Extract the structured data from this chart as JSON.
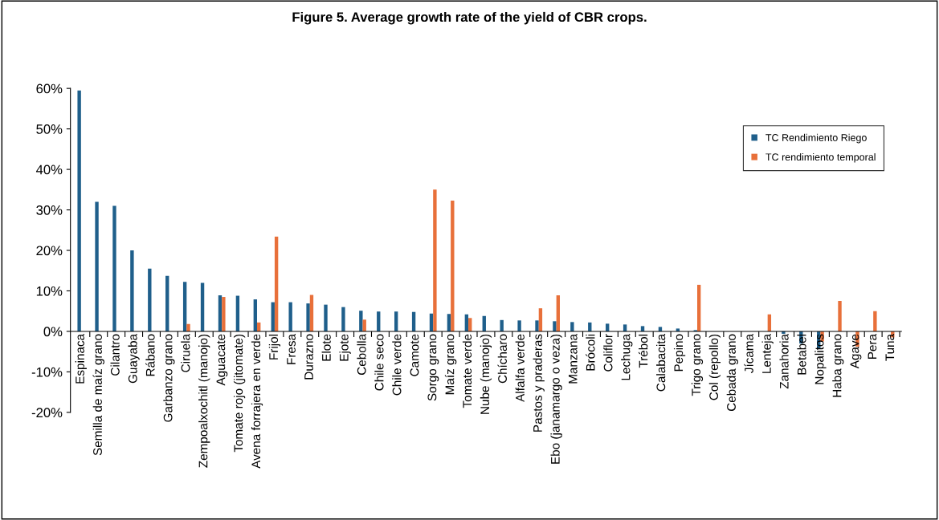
{
  "chart_data": {
    "type": "bar",
    "title": "Figure 5. Average growth rate of the yield of CBR crops.",
    "categories": [
      "Espinaca",
      "Semilla de maíz grano",
      "Cilantro",
      "Guayaba",
      "Rábano",
      "Garbanzo grano",
      "Ciruela",
      "Zempoalxochitl (manojo)",
      "Aguacate",
      "Tomate rojo (jitomate)",
      "Avena forrajera en verde",
      "Frijol",
      "Fresa",
      "Durazno",
      "Elote",
      "Ejote",
      "Cebolla",
      "Chile seco",
      "Chile verde",
      "Camote",
      "Sorgo grano",
      "Maíz grano",
      "Tomate verde",
      "Nube (manojo)",
      "Chícharo",
      "Alfalfa verde",
      "Pastos y praderas",
      "Ebo (janamargo o veza)",
      "Manzana",
      "Brócoli",
      "Coliflor",
      "Lechuga",
      "Trébol",
      "Calabacita",
      "Pepino",
      "Trigo grano",
      "Col (repollo)",
      "Cebada grano",
      "Jícama",
      "Lenteja",
      "Zanahoria",
      "Betabel",
      "Nopalitos",
      "Haba grano",
      "Agave",
      "Pera",
      "Tuna"
    ],
    "series": [
      {
        "name": "TC Rendimiento Riego",
        "color": "#1f5f8b",
        "values": [
          59.5,
          32,
          31,
          20,
          15.5,
          13.7,
          12.2,
          12,
          8.9,
          8.8,
          7.9,
          7.2,
          7.2,
          6.9,
          6.6,
          6,
          5.1,
          4.9,
          4.9,
          4.8,
          4.4,
          4.3,
          4.2,
          3.8,
          2.8,
          2.7,
          2.7,
          2.5,
          2.3,
          2.2,
          1.9,
          1.7,
          1.3,
          1.1,
          0.7,
          0.3,
          0,
          0,
          null,
          null,
          -0.6,
          -3,
          -4.2,
          0,
          0,
          0,
          0
        ]
      },
      {
        "name": "TC rendimiento temporal",
        "color": "#e8703a",
        "values": [
          0,
          0,
          0,
          0,
          0,
          0,
          1.8,
          0,
          8.5,
          0,
          2.2,
          23.4,
          0,
          9,
          0,
          0,
          2.9,
          0,
          0,
          0,
          35,
          32.3,
          3.3,
          0,
          0,
          0,
          5.7,
          8.9,
          0,
          0,
          0,
          0,
          0,
          0,
          0,
          11.5,
          0,
          0,
          0,
          4.2,
          0,
          0,
          -2.5,
          7.5,
          -3.8,
          5,
          -1.5
        ]
      }
    ],
    "ylim": [
      -20,
      60
    ],
    "yticks": [
      {
        "value": -20,
        "label": "-20%"
      },
      {
        "value": -10,
        "label": "-10%"
      },
      {
        "value": 0,
        "label": "0%"
      },
      {
        "value": 10,
        "label": "10%"
      },
      {
        "value": 20,
        "label": "20%"
      },
      {
        "value": 30,
        "label": "30%"
      },
      {
        "value": 40,
        "label": "40%"
      },
      {
        "value": 50,
        "label": "50%"
      },
      {
        "value": 60,
        "label": "60%"
      }
    ],
    "grid": false,
    "legend": "top right"
  }
}
